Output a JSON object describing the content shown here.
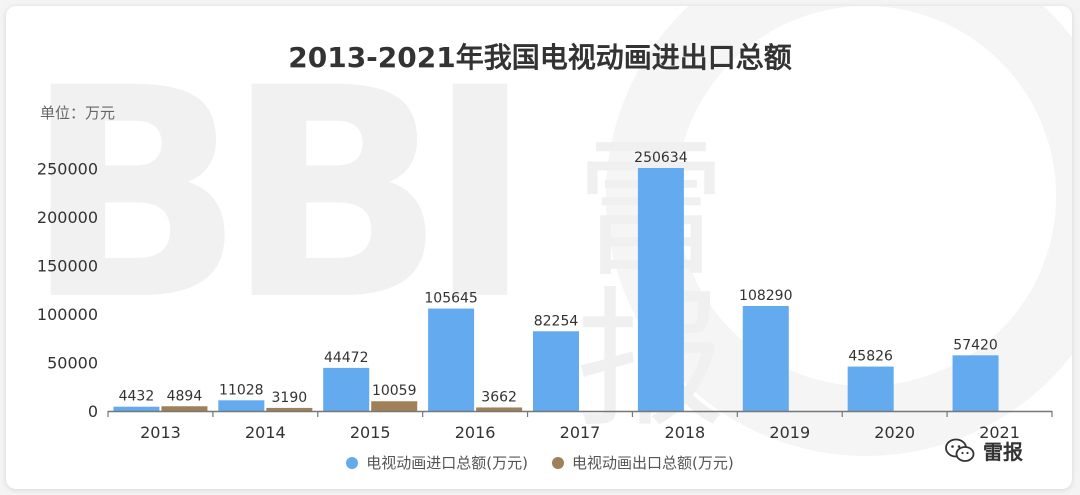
{
  "unit_label": "单位：万元",
  "brand": {
    "name": "雷报",
    "icon": "wechat-icon"
  },
  "watermark": {
    "latin": "BBI",
    "chinese": "雷报"
  },
  "colors": {
    "series_import": "#63aaee",
    "series_export": "#a08058",
    "axis": "#777777",
    "text": "#333333"
  },
  "chart_data": {
    "type": "bar",
    "title": "2013-2021年我国电视动画进出口总额",
    "categories": [
      "2013",
      "2014",
      "2015",
      "2016",
      "2017",
      "2018",
      "2019",
      "2020",
      "2021"
    ],
    "series": [
      {
        "name": "电视动画进口总额(万元)",
        "values": [
          4432,
          11028,
          44472,
          105645,
          82254,
          250634,
          108290,
          45826,
          57420
        ]
      },
      {
        "name": "电视动画出口总额(万元)",
        "values": [
          4894,
          3190,
          10059,
          3662,
          null,
          null,
          null,
          null,
          null
        ]
      }
    ],
    "yticks": [
      0,
      50000,
      100000,
      150000,
      200000,
      250000
    ],
    "ylim": [
      0,
      250634
    ],
    "grid": false,
    "legend": "bottom"
  }
}
